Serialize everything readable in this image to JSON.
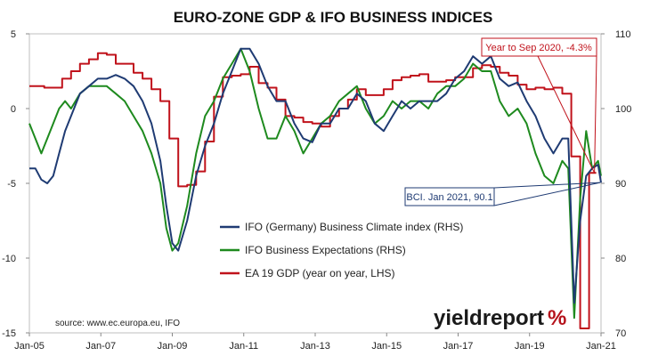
{
  "chart_data": {
    "type": "line",
    "title": "EURO-ZONE GDP & IFO BUSINESS INDICES",
    "x_tick_labels": [
      "Jan-05",
      "Jan-07",
      "Jan-09",
      "Jan-11",
      "Jan-13",
      "Jan-15",
      "Jan-17",
      "Jan-19",
      "Jan-21"
    ],
    "x_range": [
      "2005-01",
      "2021-01"
    ],
    "left_axis": {
      "range": [
        -15,
        5
      ],
      "ticks": [
        "-15",
        "-10",
        "-5",
        "0",
        "5"
      ]
    },
    "right_axis": {
      "range": [
        70,
        110
      ],
      "ticks": [
        "70",
        "80",
        "90",
        "100",
        "110"
      ]
    },
    "grid": false,
    "legend_placement": "center-left",
    "source": "source: www.ec.europa.eu, IFO",
    "brand": {
      "name": "yieldreport",
      "mark": "%"
    },
    "annotations": [
      {
        "text": "Year to Sep 2020, -4.3%",
        "series": "gdp",
        "x": "2020-09",
        "y": -4.3,
        "color": "#c0121b"
      },
      {
        "text": "BCI. Jan 2021, 90.1",
        "series": "bci",
        "x": "2021-01",
        "y": 90.1,
        "color": "#1f3b73"
      }
    ],
    "series": [
      {
        "key": "bci",
        "name": "IFO (Germany) Business Climate index (RHS)",
        "axis": "right",
        "color": "#1f3b73",
        "points": [
          [
            "2005-01",
            92
          ],
          [
            "2005-03",
            92
          ],
          [
            "2005-05",
            90.5
          ],
          [
            "2005-07",
            90
          ],
          [
            "2005-09",
            91
          ],
          [
            "2005-11",
            94
          ],
          [
            "2006-01",
            97
          ],
          [
            "2006-03",
            99
          ],
          [
            "2006-06",
            102
          ],
          [
            "2006-09",
            103
          ],
          [
            "2006-12",
            104
          ],
          [
            "2007-03",
            104
          ],
          [
            "2007-06",
            104.5
          ],
          [
            "2007-09",
            104
          ],
          [
            "2007-12",
            103
          ],
          [
            "2008-03",
            101
          ],
          [
            "2008-06",
            98
          ],
          [
            "2008-09",
            93
          ],
          [
            "2008-11",
            87
          ],
          [
            "2009-01",
            82
          ],
          [
            "2009-03",
            81
          ],
          [
            "2009-06",
            85
          ],
          [
            "2009-09",
            91
          ],
          [
            "2009-12",
            95
          ],
          [
            "2010-03",
            98
          ],
          [
            "2010-06",
            102
          ],
          [
            "2010-09",
            105
          ],
          [
            "2010-12",
            108
          ],
          [
            "2011-03",
            108
          ],
          [
            "2011-06",
            106
          ],
          [
            "2011-09",
            103
          ],
          [
            "2011-12",
            101
          ],
          [
            "2012-03",
            101
          ],
          [
            "2012-06",
            98
          ],
          [
            "2012-09",
            96
          ],
          [
            "2012-12",
            95.5
          ],
          [
            "2013-03",
            98
          ],
          [
            "2013-06",
            98
          ],
          [
            "2013-09",
            100
          ],
          [
            "2013-12",
            100
          ],
          [
            "2014-03",
            102
          ],
          [
            "2014-06",
            101
          ],
          [
            "2014-09",
            98
          ],
          [
            "2014-12",
            97
          ],
          [
            "2015-03",
            99
          ],
          [
            "2015-06",
            101
          ],
          [
            "2015-09",
            100
          ],
          [
            "2015-12",
            101
          ],
          [
            "2016-03",
            101
          ],
          [
            "2016-06",
            101
          ],
          [
            "2016-09",
            102
          ],
          [
            "2016-12",
            104
          ],
          [
            "2017-03",
            105
          ],
          [
            "2017-06",
            107
          ],
          [
            "2017-09",
            106
          ],
          [
            "2017-12",
            107
          ],
          [
            "2018-03",
            104
          ],
          [
            "2018-06",
            103
          ],
          [
            "2018-09",
            103.5
          ],
          [
            "2018-12",
            101
          ],
          [
            "2019-03",
            99
          ],
          [
            "2019-06",
            96
          ],
          [
            "2019-09",
            94
          ],
          [
            "2019-12",
            96
          ],
          [
            "2020-02",
            96
          ],
          [
            "2020-04",
            74
          ],
          [
            "2020-06",
            85
          ],
          [
            "2020-08",
            91
          ],
          [
            "2020-10",
            92
          ],
          [
            "2020-12",
            92.5
          ],
          [
            "2021-01",
            90.1
          ]
        ]
      },
      {
        "key": "exp",
        "name": "IFO Business Expectations (RHS)",
        "axis": "right",
        "color": "#1e8a1e",
        "points": [
          [
            "2005-01",
            98
          ],
          [
            "2005-03",
            96
          ],
          [
            "2005-05",
            94
          ],
          [
            "2005-07",
            96
          ],
          [
            "2005-09",
            98
          ],
          [
            "2005-11",
            100
          ],
          [
            "2006-01",
            101
          ],
          [
            "2006-03",
            100
          ],
          [
            "2006-06",
            102
          ],
          [
            "2006-09",
            103
          ],
          [
            "2006-12",
            103
          ],
          [
            "2007-03",
            103
          ],
          [
            "2007-06",
            102
          ],
          [
            "2007-09",
            101
          ],
          [
            "2007-12",
            99
          ],
          [
            "2008-03",
            97
          ],
          [
            "2008-06",
            94
          ],
          [
            "2008-09",
            90
          ],
          [
            "2008-11",
            84
          ],
          [
            "2009-01",
            81
          ],
          [
            "2009-03",
            82
          ],
          [
            "2009-06",
            87
          ],
          [
            "2009-09",
            94
          ],
          [
            "2009-12",
            99
          ],
          [
            "2010-03",
            101
          ],
          [
            "2010-06",
            104
          ],
          [
            "2010-09",
            106
          ],
          [
            "2010-12",
            108
          ],
          [
            "2011-03",
            105
          ],
          [
            "2011-06",
            100
          ],
          [
            "2011-09",
            96
          ],
          [
            "2011-12",
            96
          ],
          [
            "2012-03",
            99
          ],
          [
            "2012-06",
            97
          ],
          [
            "2012-09",
            94
          ],
          [
            "2012-12",
            96
          ],
          [
            "2013-03",
            98
          ],
          [
            "2013-06",
            99
          ],
          [
            "2013-09",
            101
          ],
          [
            "2013-12",
            102
          ],
          [
            "2014-03",
            103
          ],
          [
            "2014-06",
            100
          ],
          [
            "2014-09",
            98
          ],
          [
            "2014-12",
            99
          ],
          [
            "2015-03",
            101
          ],
          [
            "2015-06",
            100
          ],
          [
            "2015-09",
            101
          ],
          [
            "2015-12",
            101
          ],
          [
            "2016-03",
            100
          ],
          [
            "2016-06",
            102
          ],
          [
            "2016-09",
            103
          ],
          [
            "2016-12",
            103
          ],
          [
            "2017-03",
            104
          ],
          [
            "2017-06",
            106
          ],
          [
            "2017-09",
            105
          ],
          [
            "2017-12",
            105
          ],
          [
            "2018-03",
            101
          ],
          [
            "2018-06",
            99
          ],
          [
            "2018-09",
            100
          ],
          [
            "2018-12",
            98
          ],
          [
            "2019-03",
            94
          ],
          [
            "2019-06",
            91
          ],
          [
            "2019-09",
            90
          ],
          [
            "2019-12",
            93
          ],
          [
            "2020-02",
            92
          ],
          [
            "2020-04",
            72
          ],
          [
            "2020-06",
            88
          ],
          [
            "2020-08",
            97
          ],
          [
            "2020-10",
            92
          ],
          [
            "2020-12",
            93
          ],
          [
            "2021-01",
            91
          ]
        ]
      },
      {
        "key": "gdp",
        "name": "EA 19 GDP (year on year, LHS)",
        "axis": "left",
        "color": "#c0121b",
        "points": [
          [
            "2005-01",
            1.5
          ],
          [
            "2005-06",
            1.4
          ],
          [
            "2005-12",
            2.0
          ],
          [
            "2006-03",
            2.5
          ],
          [
            "2006-06",
            3.0
          ],
          [
            "2006-09",
            3.3
          ],
          [
            "2006-12",
            3.7
          ],
          [
            "2007-03",
            3.6
          ],
          [
            "2007-06",
            3.0
          ],
          [
            "2007-09",
            3.0
          ],
          [
            "2007-12",
            2.4
          ],
          [
            "2008-03",
            2.0
          ],
          [
            "2008-06",
            1.3
          ],
          [
            "2008-09",
            0.5
          ],
          [
            "2008-12",
            -2.0
          ],
          [
            "2009-03",
            -5.2
          ],
          [
            "2009-06",
            -5.1
          ],
          [
            "2009-09",
            -4.2
          ],
          [
            "2009-12",
            -2.2
          ],
          [
            "2010-03",
            0.8
          ],
          [
            "2010-06",
            2.1
          ],
          [
            "2010-09",
            2.2
          ],
          [
            "2010-12",
            2.3
          ],
          [
            "2011-03",
            2.8
          ],
          [
            "2011-06",
            1.7
          ],
          [
            "2011-09",
            1.4
          ],
          [
            "2011-12",
            0.6
          ],
          [
            "2012-03",
            -0.5
          ],
          [
            "2012-06",
            -0.6
          ],
          [
            "2012-09",
            -0.9
          ],
          [
            "2012-12",
            -1.0
          ],
          [
            "2013-03",
            -1.2
          ],
          [
            "2013-06",
            -0.5
          ],
          [
            "2013-09",
            0.0
          ],
          [
            "2013-12",
            0.6
          ],
          [
            "2014-03",
            1.3
          ],
          [
            "2014-06",
            0.9
          ],
          [
            "2014-09",
            0.9
          ],
          [
            "2014-12",
            1.3
          ],
          [
            "2015-03",
            1.9
          ],
          [
            "2015-06",
            2.1
          ],
          [
            "2015-09",
            2.2
          ],
          [
            "2015-12",
            2.3
          ],
          [
            "2016-03",
            1.8
          ],
          [
            "2016-06",
            1.8
          ],
          [
            "2016-09",
            1.9
          ],
          [
            "2016-12",
            2.1
          ],
          [
            "2017-03",
            2.1
          ],
          [
            "2017-06",
            2.7
          ],
          [
            "2017-09",
            2.9
          ],
          [
            "2017-12",
            2.8
          ],
          [
            "2018-03",
            2.4
          ],
          [
            "2018-06",
            2.2
          ],
          [
            "2018-09",
            1.6
          ],
          [
            "2018-12",
            1.3
          ],
          [
            "2019-03",
            1.4
          ],
          [
            "2019-06",
            1.3
          ],
          [
            "2019-09",
            1.4
          ],
          [
            "2019-12",
            1.0
          ],
          [
            "2020-03",
            -3.2
          ],
          [
            "2020-06",
            -14.7
          ],
          [
            "2020-09",
            -4.3
          ]
        ]
      }
    ]
  }
}
